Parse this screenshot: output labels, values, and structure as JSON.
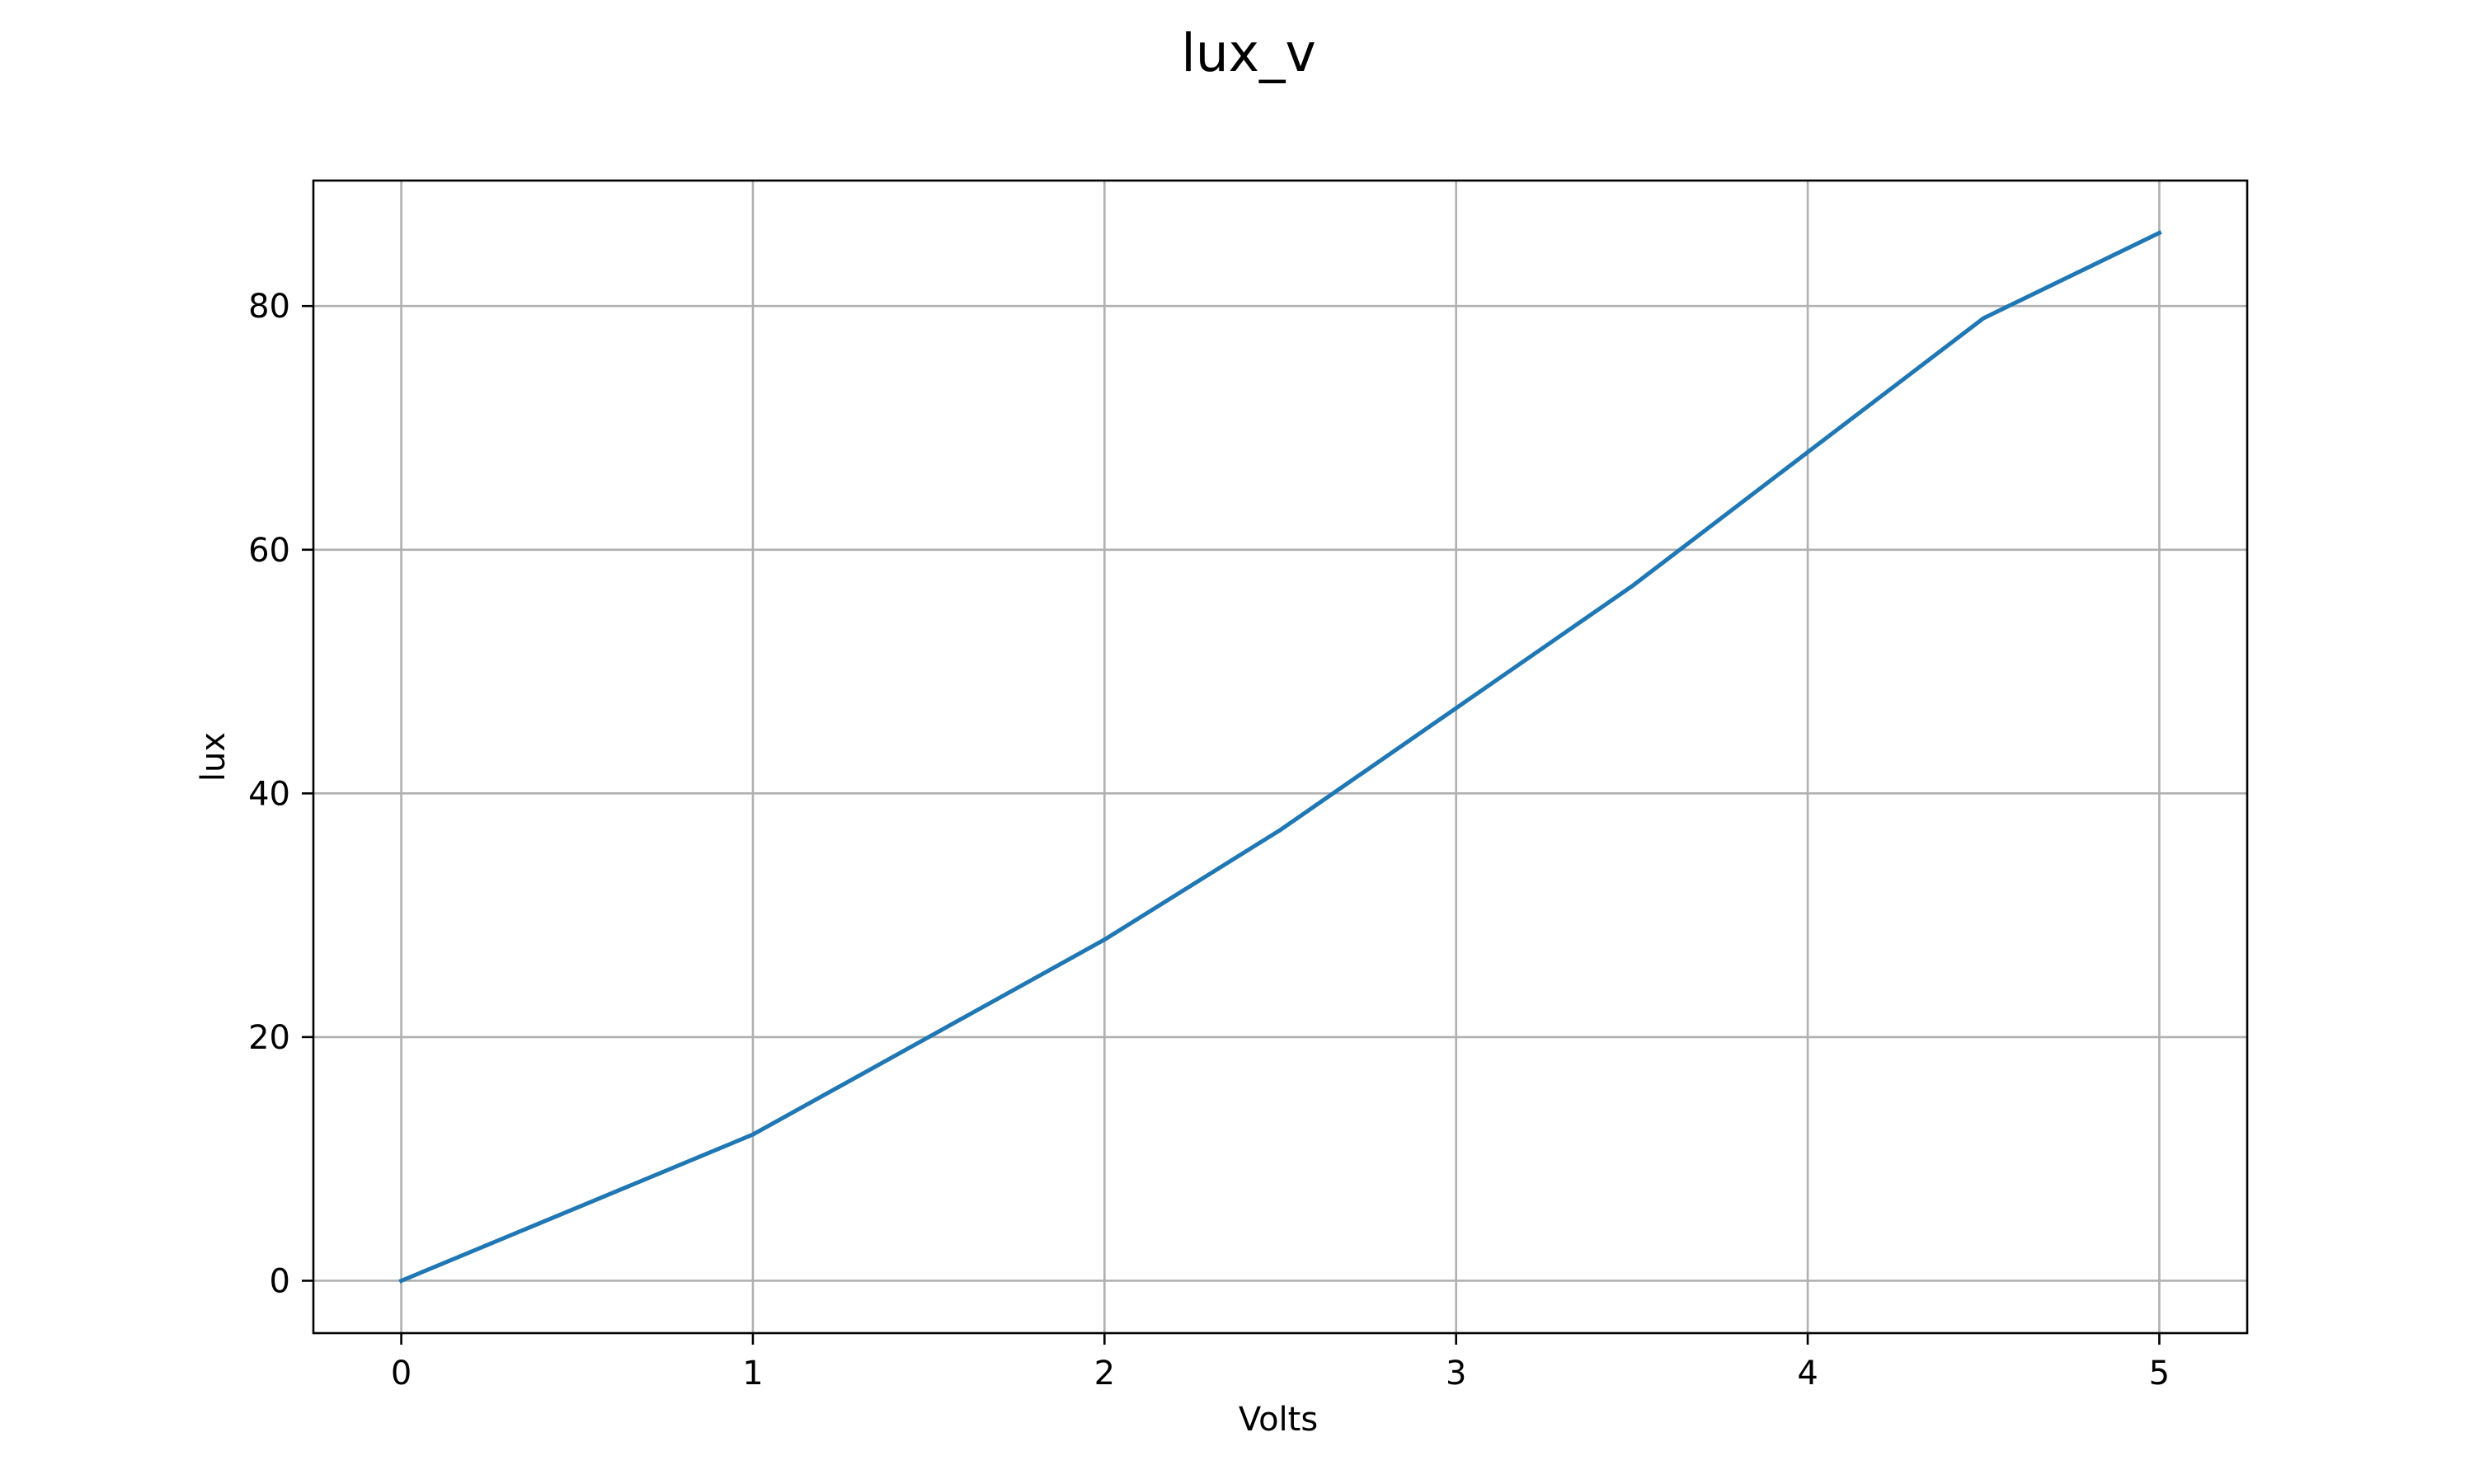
{
  "chart_data": {
    "type": "line",
    "title": "lux_v",
    "xlabel": "Volts",
    "ylabel": "lux",
    "xlim": [
      -0.25,
      5.25
    ],
    "ylim": [
      -4.3,
      90.3
    ],
    "xticks": [
      0,
      1,
      2,
      3,
      4,
      5
    ],
    "yticks": [
      0,
      20,
      40,
      60,
      80
    ],
    "grid": true,
    "legend": "none",
    "series": [
      {
        "color": "#1f77b4",
        "x": [
          0,
          0.5,
          1,
          1.5,
          2,
          2.5,
          3,
          3.5,
          4,
          4.5,
          5
        ],
        "y": [
          0,
          6,
          12,
          20,
          28,
          37,
          47,
          57,
          68,
          79,
          86
        ]
      }
    ]
  }
}
